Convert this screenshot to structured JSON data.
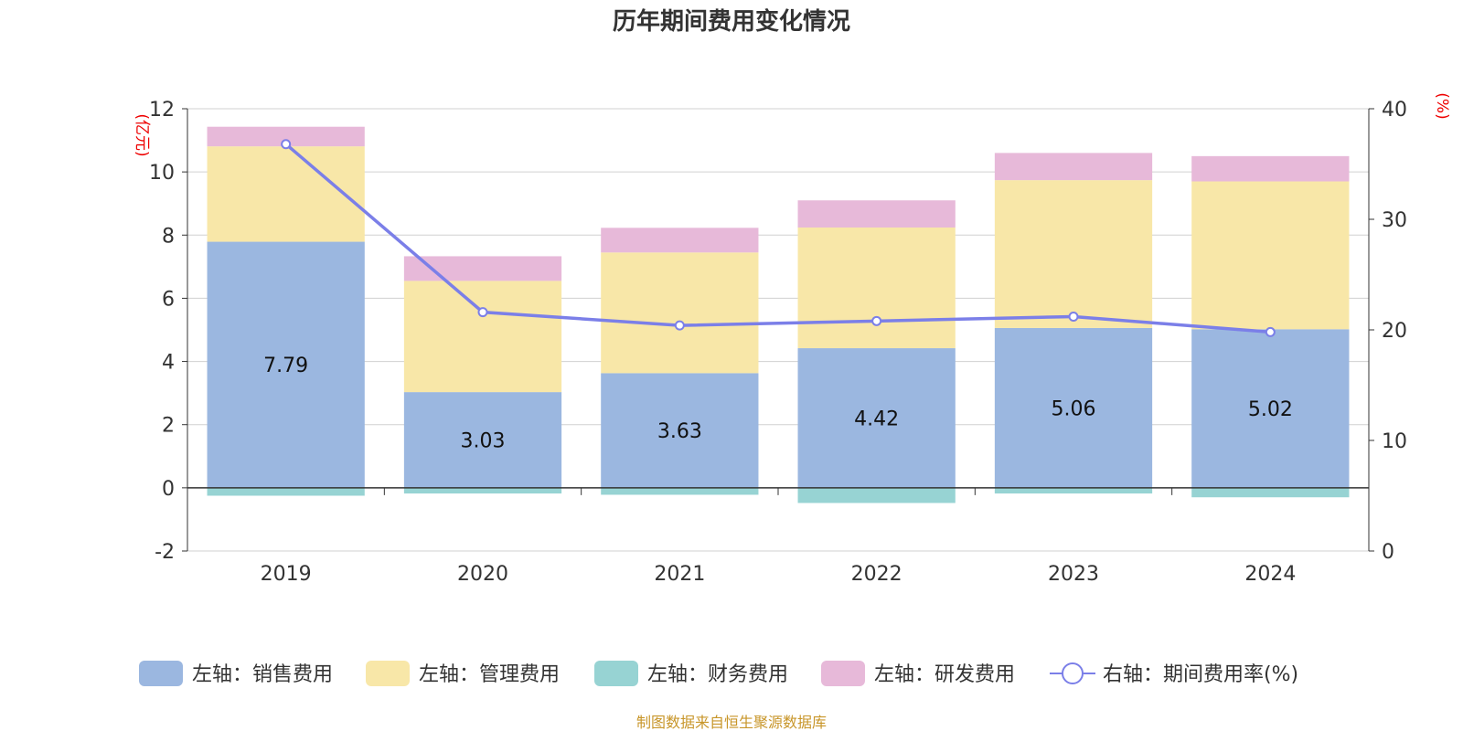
{
  "chart_data": {
    "type": "bar",
    "title": "历年期间费用变化情况",
    "left_unit": "(亿元)",
    "right_unit": "(%)",
    "categories": [
      "2019",
      "2020",
      "2021",
      "2022",
      "2023",
      "2024"
    ],
    "stacked": true,
    "ylim_left": [
      -2,
      12
    ],
    "yticks_left": [
      "-2",
      "0",
      "2",
      "4",
      "6",
      "8",
      "10",
      "12"
    ],
    "ylim_right": [
      0,
      40
    ],
    "yticks_right": [
      "0",
      "10",
      "20",
      "30",
      "40"
    ],
    "series": [
      {
        "name": "左轴：销售费用",
        "axis": "left",
        "color": "#9bb7e0",
        "values": [
          7.79,
          3.03,
          3.63,
          4.42,
          5.06,
          5.02
        ],
        "labels": [
          "7.79",
          "3.03",
          "3.63",
          "4.42",
          "5.06",
          "5.02"
        ]
      },
      {
        "name": "左轴：管理费用",
        "axis": "left",
        "color": "#f8e7a8",
        "values": [
          3.02,
          3.52,
          3.82,
          3.82,
          4.68,
          4.68
        ]
      },
      {
        "name": "左轴：财务费用",
        "axis": "left",
        "color": "#97d3d3",
        "values": [
          -0.25,
          -0.18,
          -0.22,
          -0.48,
          -0.18,
          -0.3
        ]
      },
      {
        "name": "左轴：研发费用",
        "axis": "left",
        "color": "#e7b9d9",
        "values": [
          0.62,
          0.78,
          0.78,
          0.86,
          0.86,
          0.8
        ]
      },
      {
        "name": "右轴：期间费用率(%)",
        "axis": "right",
        "type": "line",
        "color": "#7b7fe8",
        "values": [
          36.8,
          21.6,
          20.4,
          20.8,
          21.2,
          19.8
        ]
      }
    ],
    "legend_position": "bottom",
    "grid": true
  },
  "footer": {
    "source": "制图数据来自恒生聚源数据库"
  }
}
